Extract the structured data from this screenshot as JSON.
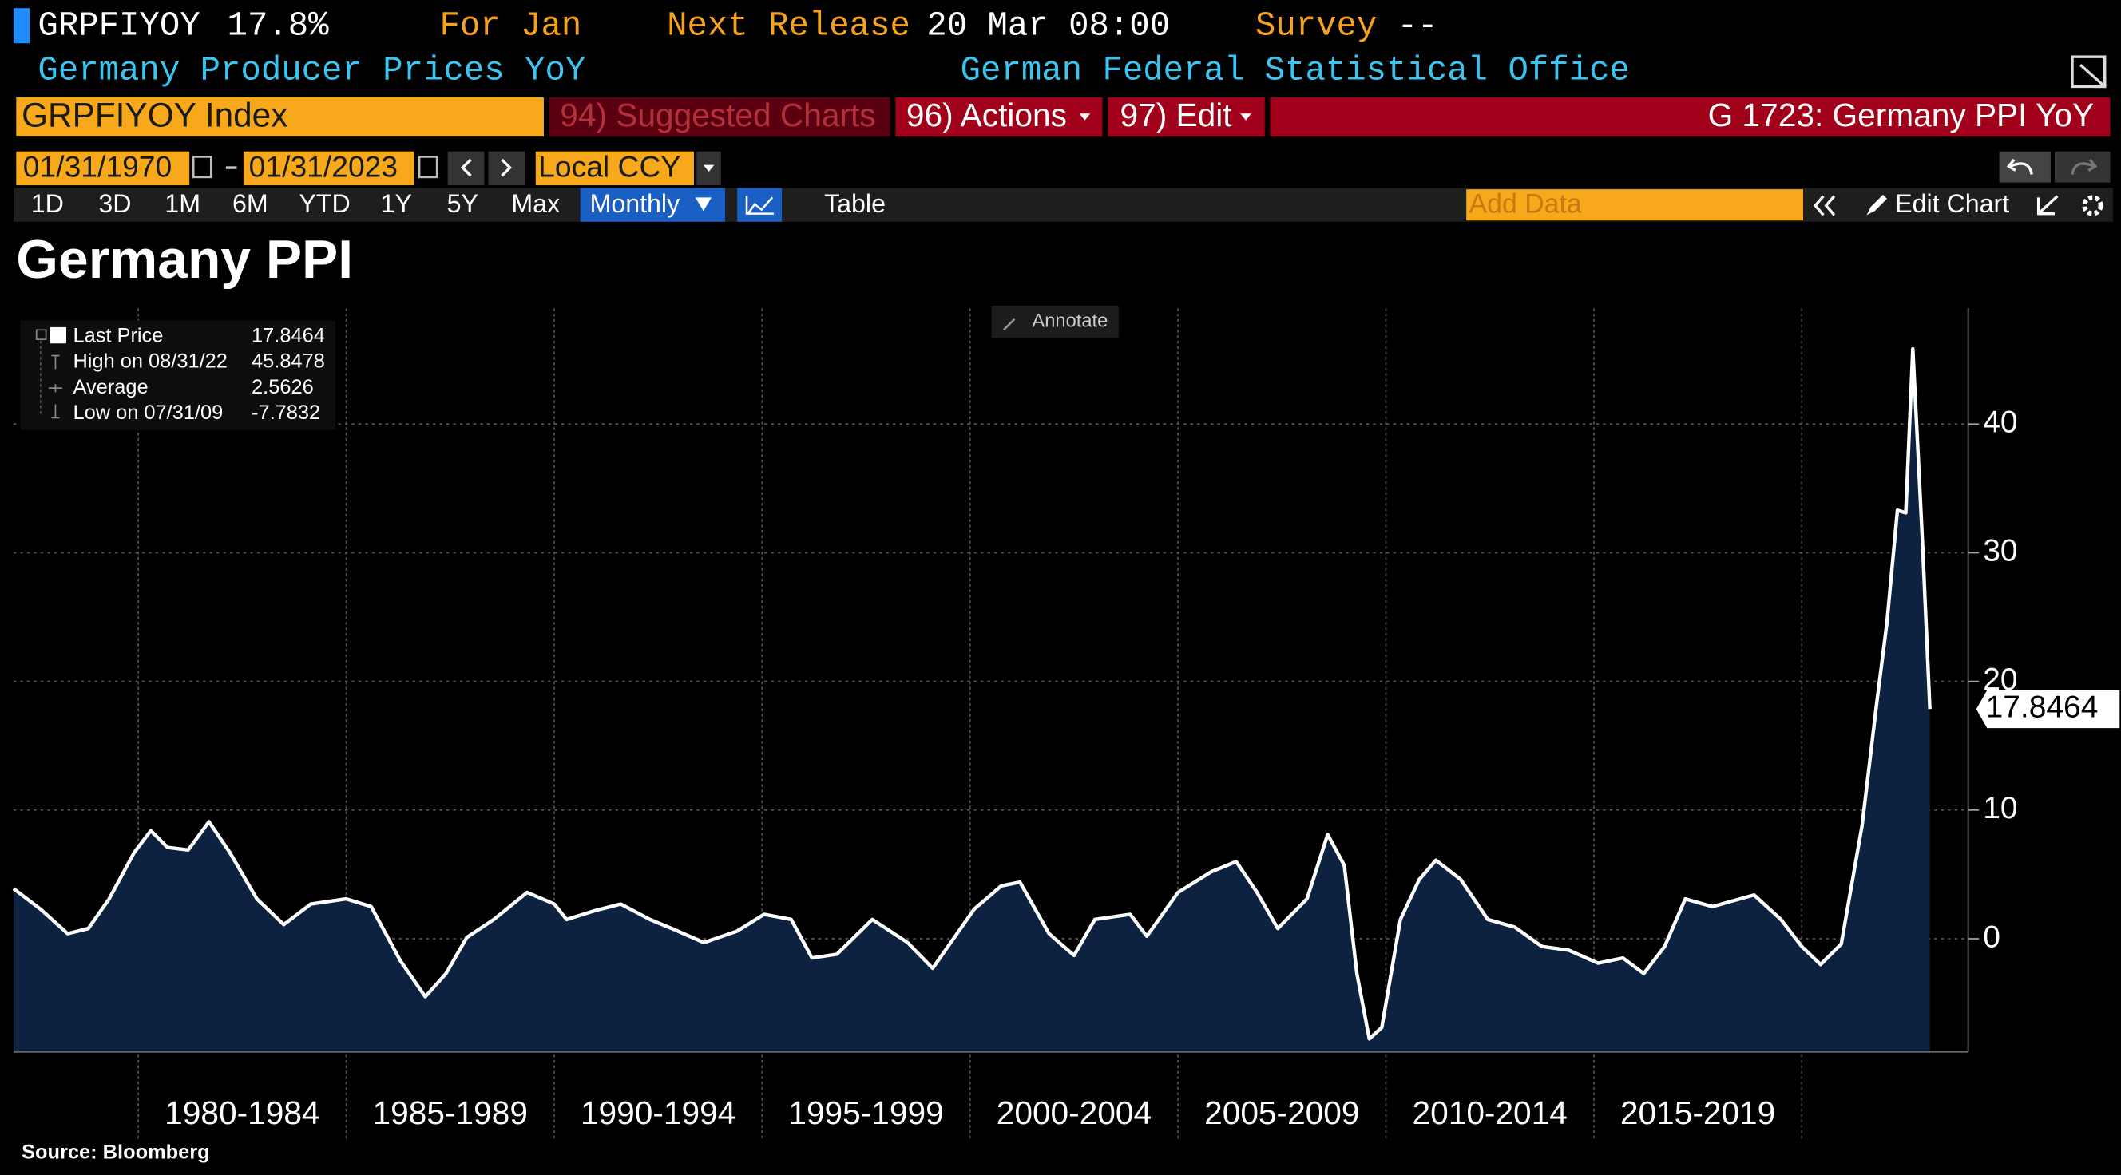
{
  "header": {
    "ticker": "GRPFIYOY",
    "price": "17.8%",
    "period": "For Jan",
    "next_release_label": "Next Release",
    "next_release": "20 Mar 08:00",
    "survey_label": "Survey",
    "survey": "--",
    "name": "Germany Producer Prices YoY",
    "source": "German Federal Statistical Office"
  },
  "toolbar": {
    "index": "GRPFIYOY Index",
    "suggested": "94) Suggested Charts",
    "actions": "96) Actions",
    "edit": "97) Edit",
    "chart_id": "G 1723: Germany PPI YoY",
    "start_date": "01/31/1970",
    "end_date": "01/31/2023",
    "currency": "Local CCY",
    "ranges": [
      "1D",
      "3D",
      "1M",
      "6M",
      "YTD",
      "1Y",
      "5Y",
      "Max"
    ],
    "frequency": "Monthly",
    "table": "Table",
    "add_data": "Add Data",
    "edit_chart": "Edit Chart",
    "annotate": "Annotate"
  },
  "chart_data": {
    "type": "area",
    "title": "Germany PPI",
    "source": "Source: Bloomberg",
    "color": "#ffffff",
    "fill": "#0c2240",
    "stats": [
      {
        "label": "Last Price",
        "value": "17.8464"
      },
      {
        "label": "High on 08/31/22",
        "value": "45.8478"
      },
      {
        "label": "Average",
        "value": "2.5626"
      },
      {
        "label": "Low on 07/31/09",
        "value": "-7.7832"
      }
    ],
    "x": [
      1977.0,
      1977.65,
      1978.3,
      1978.8,
      1979.3,
      1979.9,
      1980.3,
      1980.7,
      1981.2,
      1981.7,
      1982.2,
      1982.85,
      1983.5,
      1984.15,
      1985.0,
      1985.6,
      1986.3,
      1986.9,
      1987.4,
      1987.9,
      1988.55,
      1989.35,
      1990.0,
      1990.3,
      1991.0,
      1991.6,
      1992.3,
      1992.9,
      1993.6,
      1994.4,
      1995.05,
      1995.7,
      1996.2,
      1996.8,
      1997.65,
      1998.5,
      1999.1,
      2000.1,
      2000.75,
      2001.2,
      2001.9,
      2002.5,
      2003.0,
      2003.85,
      2004.25,
      2005.0,
      2005.8,
      2006.4,
      2006.9,
      2007.4,
      2008.1,
      2008.6,
      2009.0,
      2009.3,
      2009.6,
      2009.9,
      2010.35,
      2010.8,
      2011.2,
      2011.8,
      2012.45,
      2013.1,
      2013.75,
      2014.4,
      2015.1,
      2015.7,
      2016.2,
      2016.7,
      2017.2,
      2017.85,
      2018.85,
      2019.5,
      2020.0,
      2020.45,
      2020.95,
      2021.45,
      2021.8,
      2022.05,
      2022.3,
      2022.5,
      2022.67,
      2022.9,
      2023.08
    ],
    "values": [
      3.9,
      2.3,
      0.4,
      0.8,
      3.1,
      6.7,
      8.4,
      7.1,
      6.9,
      9.1,
      6.7,
      3.1,
      1.1,
      2.7,
      3.1,
      2.5,
      -1.7,
      -4.5,
      -2.7,
      0.1,
      1.5,
      3.6,
      2.7,
      1.5,
      2.2,
      2.7,
      1.5,
      0.7,
      -0.3,
      0.6,
      1.9,
      1.5,
      -1.5,
      -1.2,
      1.5,
      -0.3,
      -2.3,
      2.3,
      4.1,
      4.4,
      0.4,
      -1.3,
      1.5,
      1.9,
      0.2,
      3.6,
      5.2,
      6.0,
      3.6,
      0.8,
      3.1,
      8.1,
      5.7,
      -2.7,
      -7.7832,
      -6.9,
      1.5,
      4.6,
      6.1,
      4.6,
      1.5,
      0.9,
      -0.6,
      -0.9,
      -1.9,
      -1.5,
      -2.7,
      -0.6,
      3.1,
      2.5,
      3.4,
      1.5,
      -0.6,
      -2.0,
      -0.4,
      8.8,
      18.3,
      24.6,
      33.3,
      33.1,
      45.8478,
      30.9,
      17.8464
    ],
    "xlim": [
      1977,
      2024
    ],
    "ylim": [
      -8.8,
      49
    ],
    "xticks": [
      {
        "value": 1980,
        "label": "1980-1984"
      },
      {
        "value": 1985,
        "label": "1985-1989"
      },
      {
        "value": 1990,
        "label": "1990-1994"
      },
      {
        "value": 1995,
        "label": "1995-1999"
      },
      {
        "value": 2000,
        "label": "2000-2004"
      },
      {
        "value": 2005,
        "label": "2005-2009"
      },
      {
        "value": 2010,
        "label": "2010-2014"
      },
      {
        "value": 2015,
        "label": "2015-2019"
      },
      {
        "value": 2020,
        "label": ""
      }
    ],
    "yticks": [
      0,
      10,
      20,
      30,
      40
    ],
    "grid": true
  }
}
